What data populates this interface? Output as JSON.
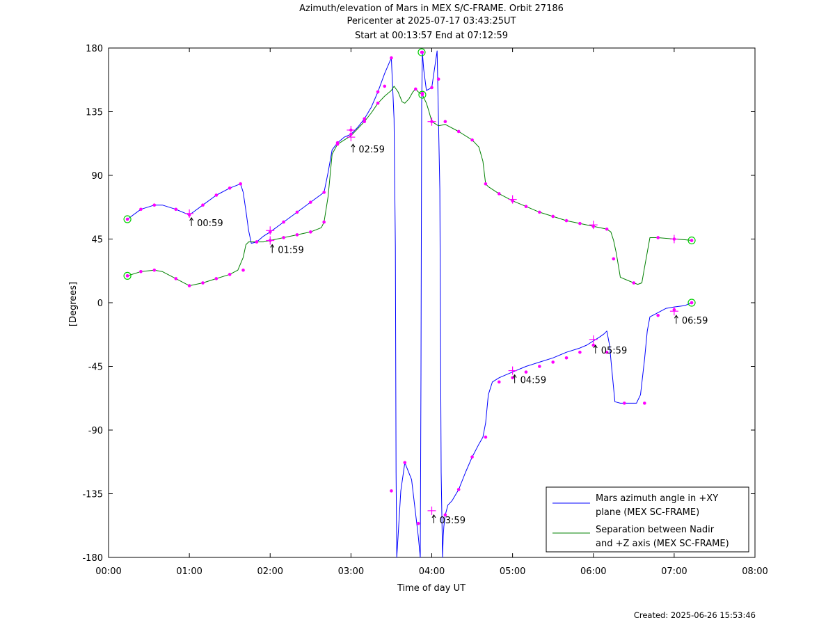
{
  "titles": {
    "line1": "Azimuth/elevation of Mars in MEX S/C-FRAME.  Orbit 27186",
    "line2": "Pericenter at 2025-07-17 03:43:25UT",
    "line3": "Start at 00:13:57 End at 07:12:59"
  },
  "footer": {
    "created": "Created: 2025-06-26 15:53:46"
  },
  "colors": {
    "azimuth": "#0000ff",
    "separation": "#008000",
    "marker": "#ff00ff",
    "endpoint": "#00cc00"
  },
  "chart_data": {
    "type": "line",
    "title": "Azimuth/elevation of Mars in MEX S/C-FRAME.  Orbit 27186",
    "xlabel": "Time of day UT",
    "ylabel": "[Degrees]",
    "xlim": [
      0,
      480
    ],
    "ylim": [
      -180,
      180
    ],
    "grid": false,
    "legend_position": "bottom-right",
    "x_ticks": [
      {
        "v": 0,
        "label": "00:00"
      },
      {
        "v": 60,
        "label": "01:00"
      },
      {
        "v": 120,
        "label": "02:00"
      },
      {
        "v": 180,
        "label": "03:00"
      },
      {
        "v": 240,
        "label": "04:00"
      },
      {
        "v": 300,
        "label": "05:00"
      },
      {
        "v": 360,
        "label": "06:00"
      },
      {
        "v": 420,
        "label": "07:00"
      },
      {
        "v": 480,
        "label": "08:00"
      }
    ],
    "y_ticks": [
      {
        "v": 180,
        "label": "180"
      },
      {
        "v": 135,
        "label": "135"
      },
      {
        "v": 90,
        "label": "90"
      },
      {
        "v": 45,
        "label": "45"
      },
      {
        "v": 0,
        "label": "0"
      },
      {
        "v": -45,
        "label": "-45"
      },
      {
        "v": -90,
        "label": "-90"
      },
      {
        "v": -135,
        "label": "-135"
      },
      {
        "v": -180,
        "label": "-180"
      }
    ],
    "series": [
      {
        "name": "Mars azimuth angle in +XY plane (MEX SC-FRAME)",
        "legend_lines": [
          "Mars azimuth angle in +XY",
          "plane (MEX SC-FRAME)"
        ],
        "color": "#0000ff",
        "x": [
          14,
          24,
          34,
          40,
          50,
          60,
          70,
          80,
          90,
          98,
          100,
          102,
          104,
          106,
          110,
          115,
          120,
          130,
          140,
          150,
          160,
          163,
          166,
          170,
          175,
          180,
          185,
          190,
          195,
          200,
          205,
          210,
          212,
          213,
          213.5,
          214,
          215,
          217,
          220,
          225,
          230,
          231.5,
          232,
          232.5,
          233,
          234,
          236,
          240,
          244,
          246,
          247,
          248,
          248.5,
          249,
          250,
          252,
          255,
          260,
          265,
          270,
          275,
          278,
          280,
          282,
          285,
          290,
          300,
          310,
          320,
          330,
          340,
          350,
          355,
          360,
          365,
          368,
          370,
          372,
          374,
          376,
          380,
          385,
          392,
          395,
          398,
          400,
          402,
          406,
          410,
          414,
          420,
          428,
          433
        ],
        "y": [
          59,
          66,
          69,
          69,
          66,
          62,
          69,
          76,
          81,
          84,
          78,
          65,
          51,
          42,
          43,
          47,
          50,
          57,
          64,
          71,
          78,
          92,
          108,
          113,
          117,
          119,
          124,
          130,
          138,
          149,
          162,
          173,
          130,
          40,
          -120,
          -180,
          -165,
          -133,
          -113,
          -125,
          -165,
          -180,
          -50,
          140,
          177,
          165,
          150,
          152,
          178,
          80,
          -120,
          -180,
          -165,
          -158,
          -150,
          -143,
          -140,
          -132,
          -120,
          -109,
          -100,
          -95,
          -85,
          -65,
          -56,
          -53,
          -49,
          -45,
          -42,
          -39,
          -35,
          -32,
          -30,
          -27,
          -24,
          -22,
          -20,
          -30,
          -50,
          -70,
          -71,
          -71,
          -71,
          -65,
          -40,
          -20,
          -10,
          -8,
          -6,
          -4,
          -3,
          -2,
          0
        ]
      },
      {
        "name": "Separation between Nadir and +Z axis (MEX SC-FRAME)",
        "legend_lines": [
          "Separation between Nadir",
          "and +Z axis (MEX SC-FRAME)"
        ],
        "color": "#008000",
        "x": [
          14,
          24,
          34,
          40,
          50,
          60,
          70,
          80,
          90,
          96,
          100,
          102,
          104,
          106,
          110,
          115,
          120,
          130,
          140,
          150,
          158,
          160,
          163,
          166,
          170,
          175,
          180,
          185,
          190,
          195,
          200,
          205,
          210,
          212,
          215,
          218,
          220,
          223,
          226,
          228,
          230,
          233,
          236,
          238,
          240,
          245,
          250,
          260,
          270,
          275,
          278,
          280,
          282,
          290,
          300,
          310,
          320,
          330,
          340,
          350,
          360,
          370,
          373,
          375,
          377,
          380,
          385,
          390,
          393,
          396,
          398,
          402,
          408,
          414,
          420,
          428,
          433
        ],
        "y": [
          19,
          22,
          23,
          22,
          17,
          12,
          14,
          17,
          20,
          23,
          32,
          41,
          43,
          43,
          43,
          43,
          44,
          46,
          48,
          50,
          53,
          57,
          75,
          105,
          112,
          115,
          118,
          123,
          128,
          134,
          141,
          146,
          150,
          153,
          149,
          142,
          141,
          144,
          149,
          151,
          149,
          147,
          141,
          135,
          128,
          125,
          126,
          121,
          115,
          110,
          100,
          84,
          82,
          77,
          72,
          68,
          64,
          61,
          58,
          56,
          54,
          52,
          50,
          44,
          35,
          18,
          16,
          14,
          13,
          14,
          25,
          46,
          46,
          45.5,
          45,
          44.5,
          44
        ]
      }
    ],
    "markers": {
      "azimuth": [
        {
          "x": 14,
          "y": 59
        },
        {
          "x": 24,
          "y": 66
        },
        {
          "x": 34,
          "y": 69
        },
        {
          "x": 50,
          "y": 66
        },
        {
          "x": 60,
          "y": 62
        },
        {
          "x": 70,
          "y": 69
        },
        {
          "x": 80,
          "y": 76
        },
        {
          "x": 90,
          "y": 81
        },
        {
          "x": 98,
          "y": 84
        },
        {
          "x": 110,
          "y": 43
        },
        {
          "x": 120,
          "y": 50
        },
        {
          "x": 130,
          "y": 57
        },
        {
          "x": 140,
          "y": 64
        },
        {
          "x": 150,
          "y": 71
        },
        {
          "x": 160,
          "y": 78
        },
        {
          "x": 170,
          "y": 113
        },
        {
          "x": 180,
          "y": 119
        },
        {
          "x": 190,
          "y": 130
        },
        {
          "x": 200,
          "y": 149
        },
        {
          "x": 210,
          "y": 173
        },
        {
          "x": 210,
          "y": -133
        },
        {
          "x": 220,
          "y": -113
        },
        {
          "x": 230,
          "y": -156
        },
        {
          "x": 233,
          "y": 177
        },
        {
          "x": 240,
          "y": 152
        },
        {
          "x": 245,
          "y": 158
        },
        {
          "x": 250,
          "y": -150
        },
        {
          "x": 260,
          "y": -132
        },
        {
          "x": 270,
          "y": -109
        },
        {
          "x": 280,
          "y": -95
        },
        {
          "x": 290,
          "y": -56
        },
        {
          "x": 300,
          "y": -53
        },
        {
          "x": 310,
          "y": -49
        },
        {
          "x": 320,
          "y": -45
        },
        {
          "x": 330,
          "y": -42
        },
        {
          "x": 340,
          "y": -39
        },
        {
          "x": 350,
          "y": -35
        },
        {
          "x": 360,
          "y": -30
        },
        {
          "x": 370,
          "y": -35
        },
        {
          "x": 383,
          "y": -71
        },
        {
          "x": 398,
          "y": -71
        },
        {
          "x": 408,
          "y": -9
        },
        {
          "x": 420,
          "y": -5
        },
        {
          "x": 433,
          "y": 0
        }
      ],
      "separation": [
        {
          "x": 14,
          "y": 19
        },
        {
          "x": 24,
          "y": 22
        },
        {
          "x": 34,
          "y": 23
        },
        {
          "x": 50,
          "y": 17
        },
        {
          "x": 60,
          "y": 12
        },
        {
          "x": 70,
          "y": 14
        },
        {
          "x": 80,
          "y": 17
        },
        {
          "x": 90,
          "y": 20
        },
        {
          "x": 100,
          "y": 23
        },
        {
          "x": 110,
          "y": 43
        },
        {
          "x": 120,
          "y": 44
        },
        {
          "x": 130,
          "y": 46
        },
        {
          "x": 140,
          "y": 48
        },
        {
          "x": 150,
          "y": 50
        },
        {
          "x": 160,
          "y": 57
        },
        {
          "x": 170,
          "y": 112
        },
        {
          "x": 180,
          "y": 122
        },
        {
          "x": 190,
          "y": 128
        },
        {
          "x": 200,
          "y": 141
        },
        {
          "x": 205,
          "y": 153
        },
        {
          "x": 228,
          "y": 151
        },
        {
          "x": 233,
          "y": 148
        },
        {
          "x": 240,
          "y": 128
        },
        {
          "x": 250,
          "y": 128
        },
        {
          "x": 260,
          "y": 121
        },
        {
          "x": 270,
          "y": 115
        },
        {
          "x": 280,
          "y": 84
        },
        {
          "x": 290,
          "y": 77
        },
        {
          "x": 300,
          "y": 72
        },
        {
          "x": 310,
          "y": 68
        },
        {
          "x": 320,
          "y": 64
        },
        {
          "x": 330,
          "y": 61
        },
        {
          "x": 340,
          "y": 58
        },
        {
          "x": 350,
          "y": 56
        },
        {
          "x": 360,
          "y": 54
        },
        {
          "x": 370,
          "y": 52
        },
        {
          "x": 375,
          "y": 31
        },
        {
          "x": 390,
          "y": 14
        },
        {
          "x": 408,
          "y": 46
        },
        {
          "x": 420,
          "y": 45
        },
        {
          "x": 433,
          "y": 44
        }
      ],
      "crosses": [
        {
          "x": 60,
          "y": 63
        },
        {
          "x": 120,
          "y": 51
        },
        {
          "x": 120,
          "y": 44
        },
        {
          "x": 180,
          "y": 122
        },
        {
          "x": 180,
          "y": 117
        },
        {
          "x": 240,
          "y": -147
        },
        {
          "x": 240,
          "y": 128
        },
        {
          "x": 300,
          "y": -48
        },
        {
          "x": 300,
          "y": 73
        },
        {
          "x": 360,
          "y": -26
        },
        {
          "x": 360,
          "y": 55
        },
        {
          "x": 420,
          "y": -6
        },
        {
          "x": 420,
          "y": 45
        }
      ],
      "endpoints": [
        {
          "x": 14,
          "y": 59
        },
        {
          "x": 14,
          "y": 19
        },
        {
          "x": 433,
          "y": 44
        },
        {
          "x": 433,
          "y": 0
        },
        {
          "x": 232.5,
          "y": 177
        },
        {
          "x": 233,
          "y": 147
        }
      ]
    },
    "annotations": [
      {
        "x": 60,
        "y": 62,
        "label": "00:59"
      },
      {
        "x": 120,
        "y": 43,
        "label": "01:59"
      },
      {
        "x": 180,
        "y": 114,
        "label": "02:59"
      },
      {
        "x": 240,
        "y": -148,
        "label": "03:59"
      },
      {
        "x": 300,
        "y": -49,
        "label": "04:59"
      },
      {
        "x": 360,
        "y": -28,
        "label": "05:59"
      },
      {
        "x": 420,
        "y": -7,
        "label": "06:59"
      }
    ]
  }
}
